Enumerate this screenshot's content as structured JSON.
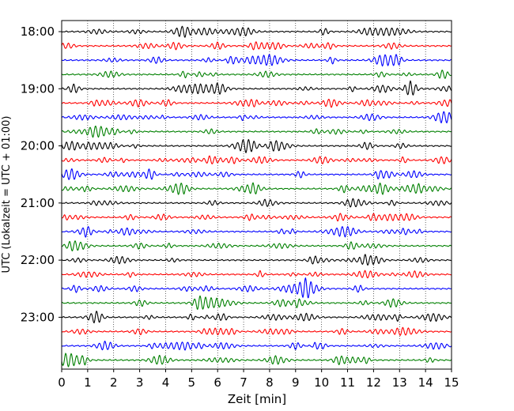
{
  "chart_data": {
    "type": "line",
    "xlabel": "Zeit  [min]",
    "ylabel": "UTC (Lokalzeit = UTC + 01:00)",
    "xlim": [
      0,
      15
    ],
    "x_ticks": [
      0,
      1,
      2,
      3,
      4,
      5,
      6,
      7,
      8,
      9,
      10,
      11,
      12,
      13,
      14,
      15
    ],
    "x_tick_labels": [
      "0",
      "1",
      "2",
      "3",
      "4",
      "5",
      "6",
      "7",
      "8",
      "9",
      "10",
      "11",
      "12",
      "13",
      "14",
      "15"
    ],
    "y_tick_labels": [
      "18:00",
      "19:00",
      "20:00",
      "21:00",
      "22:00",
      "23:00"
    ],
    "grid": {
      "vertical": true,
      "style": "dotted"
    },
    "series_colors": [
      "#000000",
      "#ff0000",
      "#0000ff",
      "#008000"
    ],
    "traces": [
      {
        "start": "18:00",
        "color": "#000000"
      },
      {
        "start": "18:15",
        "color": "#ff0000"
      },
      {
        "start": "18:30",
        "color": "#0000ff"
      },
      {
        "start": "18:45",
        "color": "#008000"
      },
      {
        "start": "19:00",
        "color": "#000000"
      },
      {
        "start": "19:15",
        "color": "#ff0000"
      },
      {
        "start": "19:30",
        "color": "#0000ff"
      },
      {
        "start": "19:45",
        "color": "#008000"
      },
      {
        "start": "20:00",
        "color": "#000000"
      },
      {
        "start": "20:15",
        "color": "#ff0000"
      },
      {
        "start": "20:30",
        "color": "#0000ff"
      },
      {
        "start": "20:45",
        "color": "#008000"
      },
      {
        "start": "21:00",
        "color": "#000000"
      },
      {
        "start": "21:15",
        "color": "#ff0000"
      },
      {
        "start": "21:30",
        "color": "#0000ff"
      },
      {
        "start": "21:45",
        "color": "#008000"
      },
      {
        "start": "22:00",
        "color": "#000000"
      },
      {
        "start": "22:15",
        "color": "#ff0000"
      },
      {
        "start": "22:30",
        "color": "#0000ff"
      },
      {
        "start": "22:45",
        "color": "#008000"
      },
      {
        "start": "23:00",
        "color": "#000000"
      },
      {
        "start": "23:15",
        "color": "#ff0000"
      },
      {
        "start": "23:30",
        "color": "#0000ff"
      },
      {
        "start": "23:45",
        "color": "#008000"
      }
    ]
  }
}
